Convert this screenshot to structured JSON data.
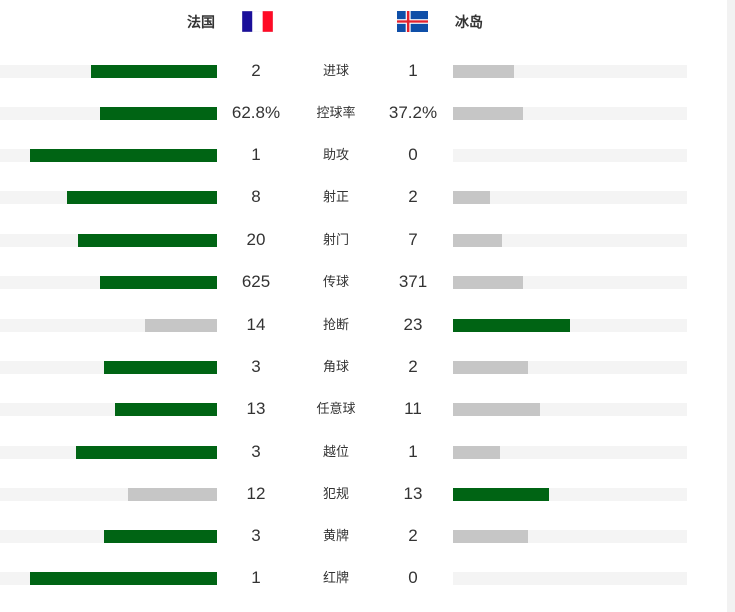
{
  "home": {
    "name": "法国",
    "flag": "france-flag"
  },
  "away": {
    "name": "冰岛",
    "flag": "iceland-flag"
  },
  "colors": {
    "leader": "#006414",
    "trailer": "#c6c6c6",
    "track": "#f4f4f4"
  },
  "stats": [
    {
      "label": "进球",
      "home": "2",
      "away": "1",
      "home_fill": 0.58,
      "away_fill": 0.26,
      "leader": "home"
    },
    {
      "label": "控球率",
      "home": "62.8%",
      "away": "37.2%",
      "home_fill": 0.54,
      "away_fill": 0.3,
      "leader": "home"
    },
    {
      "label": "助攻",
      "home": "1",
      "away": "0",
      "home_fill": 0.86,
      "away_fill": 0,
      "leader": "home"
    },
    {
      "label": "射正",
      "home": "8",
      "away": "2",
      "home_fill": 0.69,
      "away_fill": 0.16,
      "leader": "home"
    },
    {
      "label": "射门",
      "home": "20",
      "away": "7",
      "home_fill": 0.64,
      "away_fill": 0.21,
      "leader": "home"
    },
    {
      "label": "传球",
      "home": "625",
      "away": "371",
      "home_fill": 0.54,
      "away_fill": 0.3,
      "leader": "home"
    },
    {
      "label": "抢断",
      "home": "14",
      "away": "23",
      "home_fill": 0.33,
      "away_fill": 0.5,
      "leader": "away"
    },
    {
      "label": "角球",
      "home": "3",
      "away": "2",
      "home_fill": 0.52,
      "away_fill": 0.32,
      "leader": "home"
    },
    {
      "label": "任意球",
      "home": "13",
      "away": "11",
      "home_fill": 0.47,
      "away_fill": 0.37,
      "leader": "home"
    },
    {
      "label": "越位",
      "home": "3",
      "away": "1",
      "home_fill": 0.65,
      "away_fill": 0.2,
      "leader": "home"
    },
    {
      "label": "犯规",
      "home": "12",
      "away": "13",
      "home_fill": 0.41,
      "away_fill": 0.41,
      "leader": "away"
    },
    {
      "label": "黄牌",
      "home": "3",
      "away": "2",
      "home_fill": 0.52,
      "away_fill": 0.32,
      "leader": "home"
    },
    {
      "label": "红牌",
      "home": "1",
      "away": "0",
      "home_fill": 0.86,
      "away_fill": 0,
      "leader": "home"
    }
  ]
}
